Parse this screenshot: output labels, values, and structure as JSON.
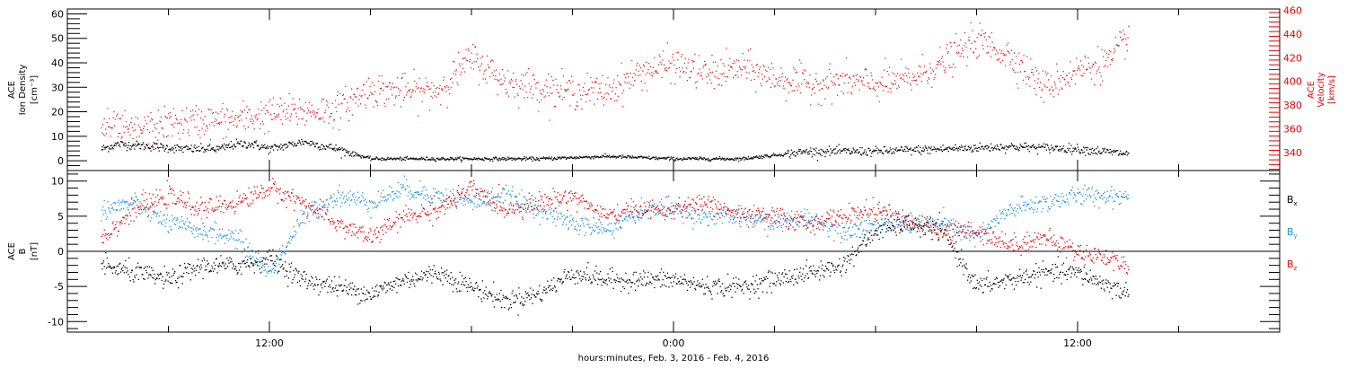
{
  "chart_data": {
    "type": "scatter",
    "xlabel": "hours:minutes, Feb.  3, 2016 - Feb.  4, 2016",
    "x_ticks": [
      "12:00",
      "0:00",
      "12:00"
    ],
    "panels": [
      {
        "id": "top",
        "ylabel_left": [
          "ACE",
          "Ion Density",
          "[cm⁻³]"
        ],
        "ylabel_right": [
          "ACE",
          "Velocity",
          "[km/s]"
        ],
        "ylim_left": [
          -4,
          62
        ],
        "ylim_right": [
          325,
          461
        ],
        "yticks_left": [
          "0",
          "10",
          "20",
          "30",
          "40",
          "50",
          "60"
        ],
        "yticks_right": [
          "340",
          "360",
          "380",
          "400",
          "420",
          "440",
          "460"
        ],
        "colors": {
          "density": "#000000",
          "velocity": "#e60000"
        },
        "series": [
          {
            "id": "density",
            "axis": "left",
            "color": "#000000",
            "anchors_hours": [
              7.0,
              7.5,
              8.5,
              9.5,
              10.5,
              11.0,
              11.5,
              12.0,
              13.0,
              14.0,
              15.0,
              16.0,
              18.0,
              20.0,
              22.0,
              24.0,
              26.0,
              28.0,
              30.0,
              32.0,
              34.0,
              36.0,
              37.5
            ],
            "anchors_values": [
              5,
              7,
              6,
              5,
              5,
              7,
              7,
              5,
              8,
              5,
              1,
              1,
              1,
              1,
              2,
              1,
              1,
              4,
              4,
              5,
              6,
              5,
              3
            ]
          },
          {
            "id": "velocity",
            "axis": "right",
            "color": "#e60000",
            "anchors_hours": [
              7.0,
              8.0,
              9.0,
              10.0,
              11.0,
              12.0,
              13.0,
              14.0,
              15.0,
              16.0,
              17.0,
              18.0,
              19.0,
              20.0,
              21.0,
              22.0,
              23.0,
              24.0,
              25.0,
              26.0,
              27.0,
              28.0,
              29.0,
              30.0,
              31.0,
              32.0,
              33.0,
              34.0,
              35.0,
              36.0,
              37.0,
              37.5
            ],
            "anchors_values": [
              362,
              358,
              365,
              367,
              368,
              373,
              375,
              377,
              394,
              392,
              393,
              420,
              400,
              395,
              392,
              392,
              408,
              415,
              406,
              412,
              403,
              398,
              400,
              398,
              402,
              416,
              435,
              422,
              395,
              410,
              418,
              440
            ]
          }
        ]
      },
      {
        "id": "bottom",
        "ylabel_left": [
          "ACE",
          "B",
          "[nT]"
        ],
        "ylim": [
          -11.5,
          11.5
        ],
        "yticks": [
          "-10",
          "-5",
          "0",
          "5",
          "10"
        ],
        "zero_line": true,
        "legend": [
          {
            "label": "Bx",
            "base": "B",
            "sub": "x",
            "color": "#000000"
          },
          {
            "label": "By",
            "base": "B",
            "sub": "y",
            "color": "#1a8fe0"
          },
          {
            "label": "Bz",
            "base": "B",
            "sub": "z",
            "color": "#e60000"
          }
        ],
        "legend_position": "right",
        "series": [
          {
            "id": "Bx",
            "color": "#000000",
            "anchors_hours": [
              7.0,
              8.0,
              9.0,
              10.0,
              11.0,
              12.0,
              13.0,
              14.0,
              15.0,
              16.0,
              17.0,
              18.0,
              19.0,
              20.0,
              21.0,
              22.0,
              23.0,
              24.0,
              25.0,
              26.0,
              27.0,
              28.0,
              29.0,
              30.0,
              31.0,
              32.0,
              33.0,
              34.0,
              35.0,
              36.0,
              37.0,
              37.5
            ],
            "anchors_values": [
              -2,
              -3,
              -4,
              -2,
              -2,
              -1,
              -4,
              -5,
              -6,
              -4,
              -3,
              -5,
              -7,
              -6,
              -3,
              -4,
              -4,
              -4,
              -5,
              -5,
              -4,
              -3,
              -2,
              3,
              4,
              3,
              -5,
              -4,
              -3,
              -3,
              -5,
              -6
            ]
          },
          {
            "id": "By",
            "color": "#1a8fe0",
            "anchors_hours": [
              7.0,
              8.0,
              9.0,
              10.0,
              11.0,
              12.0,
              13.0,
              14.0,
              15.0,
              16.0,
              17.0,
              18.0,
              19.0,
              20.0,
              21.0,
              22.0,
              23.0,
              24.0,
              25.0,
              26.0,
              27.0,
              28.0,
              29.0,
              30.0,
              31.0,
              32.0,
              33.0,
              34.0,
              35.0,
              36.0,
              37.0,
              37.5
            ],
            "anchors_values": [
              6,
              7,
              4,
              3,
              2,
              -3,
              5,
              8,
              7,
              9,
              8,
              7,
              8,
              6,
              4,
              3,
              6,
              6,
              5,
              5,
              4,
              5,
              3,
              4,
              4,
              4,
              2,
              6,
              7,
              8,
              8,
              8
            ]
          },
          {
            "id": "Bz",
            "color": "#e60000",
            "anchors_hours": [
              7.0,
              8.0,
              9.0,
              10.0,
              11.0,
              12.0,
              13.0,
              14.0,
              15.0,
              16.0,
              17.0,
              18.0,
              19.0,
              20.0,
              21.0,
              22.0,
              23.0,
              24.0,
              25.0,
              26.0,
              27.0,
              28.0,
              29.0,
              30.0,
              31.0,
              32.0,
              33.0,
              34.0,
              35.0,
              36.0,
              37.0,
              37.5
            ],
            "anchors_values": [
              2,
              6,
              8,
              6,
              7,
              9,
              7,
              4,
              2,
              5,
              6,
              9,
              6,
              7,
              8,
              5,
              6,
              6,
              7,
              5,
              5,
              4,
              5,
              6,
              4,
              3,
              3,
              1,
              2,
              0,
              -1,
              -2
            ]
          }
        ]
      }
    ],
    "xlim_hours": [
      6.0,
      42.0
    ],
    "x_ticks_hours": [
      12,
      24,
      36
    ],
    "grid": false
  }
}
